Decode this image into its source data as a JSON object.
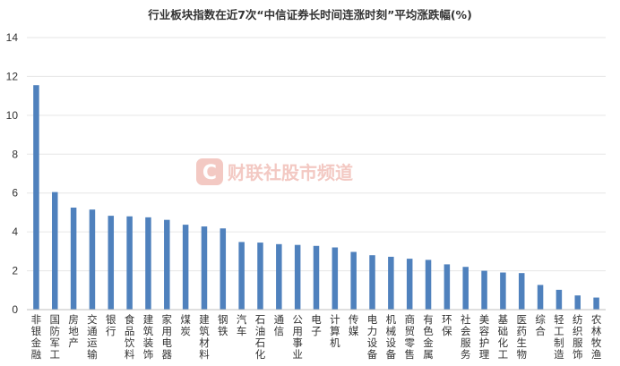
{
  "watermark": {
    "text": "财联社股市频道",
    "logo_glyph": "C"
  },
  "chart_data": {
    "type": "bar",
    "title": "行业板块指数在近7次“中信证券长时间连涨时刻”平均涨跌幅(%)",
    "xlabel": "",
    "ylabel": "",
    "ylim": [
      0,
      14
    ],
    "yticks": [
      "0",
      "2",
      "4",
      "6",
      "8",
      "10",
      "12",
      "14"
    ],
    "grid": true,
    "legend": "none",
    "bar_color": "#4f81bd",
    "categories": [
      "非银金融",
      "国防军工",
      "房地产",
      "交通运输",
      "银行",
      "食品饮料",
      "建筑装饰",
      "家用电器",
      "煤炭",
      "建筑材料",
      "钢铁",
      "汽车",
      "石油石化",
      "通信",
      "公用事业",
      "电子",
      "计算机",
      "传媒",
      "电力设备",
      "机械设备",
      "商贸零售",
      "有色金属",
      "环保",
      "社会服务",
      "美容护理",
      "基础化工",
      "医药生物",
      "综合",
      "轻工制造",
      "纺织服饰",
      "农林牧渔"
    ],
    "values": [
      11.55,
      6.05,
      5.25,
      5.15,
      4.83,
      4.8,
      4.75,
      4.62,
      4.37,
      4.28,
      4.18,
      3.48,
      3.45,
      3.37,
      3.33,
      3.28,
      3.2,
      2.97,
      2.8,
      2.72,
      2.62,
      2.56,
      2.33,
      2.2,
      2.0,
      1.91,
      1.88,
      1.27,
      1.02,
      0.73,
      0.62
    ]
  }
}
